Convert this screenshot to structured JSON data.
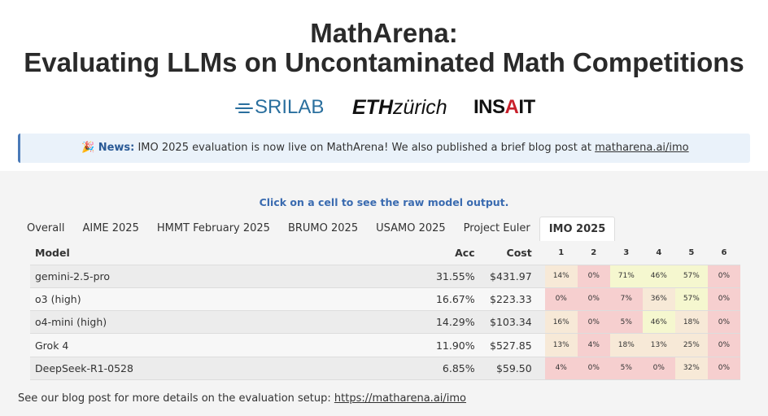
{
  "header": {
    "title_line1": "MathArena:",
    "title_line2": "Evaluating LLMs on Uncontaminated Math Competitions"
  },
  "logos": {
    "sri": "SRILAB",
    "eth_bold": "ETH",
    "eth_rest": "zürich",
    "insait_pre": "INS",
    "insait_a": "A",
    "insait_post": "IT"
  },
  "news": {
    "icon": "🎉",
    "label": "News:",
    "text": " IMO 2025 evaluation is now live on MathArena! We also published a brief blog post at ",
    "link": "matharena.ai/imo"
  },
  "hint": "Click on a cell to see the raw model output.",
  "tabs": [
    {
      "label": "Overall"
    },
    {
      "label": "AIME 2025"
    },
    {
      "label": "HMMT February 2025"
    },
    {
      "label": "BRUMO 2025"
    },
    {
      "label": "USAMO 2025"
    },
    {
      "label": "Project Euler"
    },
    {
      "label": "IMO 2025"
    }
  ],
  "active_tab": "IMO 2025",
  "table": {
    "columns": {
      "model": "Model",
      "acc": "Acc",
      "cost": "Cost",
      "problems": [
        "1",
        "2",
        "3",
        "4",
        "5",
        "6"
      ]
    },
    "rows": [
      {
        "model": "gemini-2.5-pro",
        "acc": "31.55%",
        "cost": "$431.97",
        "scores": [
          "14%",
          "0%",
          "71%",
          "46%",
          "57%",
          "0%"
        ]
      },
      {
        "model": "o3 (high)",
        "acc": "16.67%",
        "cost": "$223.33",
        "scores": [
          "0%",
          "0%",
          "7%",
          "36%",
          "57%",
          "0%"
        ]
      },
      {
        "model": "o4-mini (high)",
        "acc": "14.29%",
        "cost": "$103.34",
        "scores": [
          "16%",
          "0%",
          "5%",
          "46%",
          "18%",
          "0%"
        ]
      },
      {
        "model": "Grok 4",
        "acc": "11.90%",
        "cost": "$527.85",
        "scores": [
          "13%",
          "4%",
          "18%",
          "13%",
          "25%",
          "0%"
        ]
      },
      {
        "model": "DeepSeek-R1-0528",
        "acc": "6.85%",
        "cost": "$59.50",
        "scores": [
          "4%",
          "0%",
          "5%",
          "0%",
          "32%",
          "0%"
        ]
      }
    ]
  },
  "colors": {
    "score_low": "#f6cfcf",
    "score_mid": "#f7e9d7",
    "score_high": "#f5f7cf",
    "accent": "#3a6bb0"
  },
  "footer": {
    "text": "See our blog post for more details on the evaluation setup: ",
    "link": "https://matharena.ai/imo"
  }
}
